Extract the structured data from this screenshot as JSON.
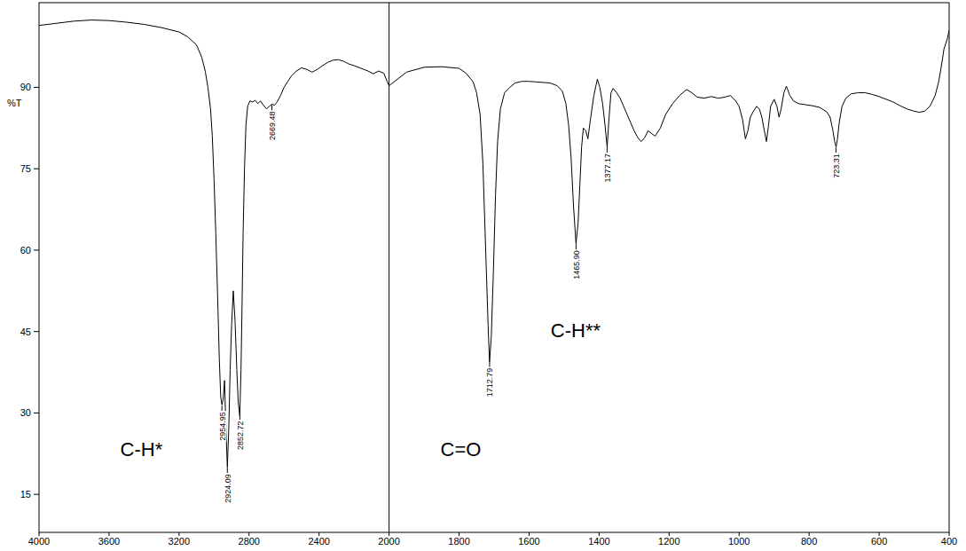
{
  "chart_data": {
    "type": "line",
    "color": "#000000",
    "ylabel": "%T",
    "grid": false,
    "xlim": [
      4000,
      400
    ],
    "xticks": [
      4000,
      3600,
      3200,
      2800,
      2400,
      2000,
      1800,
      1600,
      1400,
      1200,
      1000,
      800,
      600,
      400
    ],
    "ylim": [
      8,
      105.6
    ],
    "yticks": [
      15,
      30,
      45,
      60,
      75,
      90
    ],
    "x": [
      4000,
      3900,
      3800,
      3700,
      3600,
      3500,
      3400,
      3300,
      3200,
      3150,
      3100,
      3070,
      3050,
      3035,
      3020,
      3010,
      3000,
      2990,
      2980,
      2970,
      2962,
      2955,
      2948,
      2940,
      2932,
      2924,
      2916,
      2908,
      2900,
      2890,
      2880,
      2870,
      2862,
      2853,
      2846,
      2840,
      2834,
      2826,
      2818,
      2808,
      2795,
      2780,
      2765,
      2750,
      2735,
      2720,
      2700,
      2685,
      2669,
      2655,
      2640,
      2620,
      2600,
      2580,
      2560,
      2530,
      2500,
      2470,
      2440,
      2410,
      2380,
      2350,
      2320,
      2290,
      2260,
      2230,
      2200,
      2160,
      2120,
      2090,
      2060,
      2030,
      2010,
      2000,
      1950,
      1900,
      1850,
      1800,
      1780,
      1760,
      1750,
      1740,
      1732,
      1724,
      1717,
      1713,
      1708,
      1702,
      1696,
      1690,
      1682,
      1670,
      1655,
      1640,
      1620,
      1600,
      1580,
      1560,
      1540,
      1520,
      1505,
      1495,
      1487,
      1480,
      1473,
      1466,
      1460,
      1455,
      1450,
      1445,
      1438,
      1432,
      1425,
      1415,
      1405,
      1398,
      1390,
      1383,
      1377,
      1372,
      1366,
      1360,
      1350,
      1340,
      1330,
      1320,
      1310,
      1300,
      1290,
      1280,
      1270,
      1260,
      1250,
      1240,
      1225,
      1210,
      1190,
      1170,
      1150,
      1135,
      1120,
      1100,
      1080,
      1060,
      1040,
      1025,
      1010,
      1000,
      990,
      982,
      975,
      968,
      960,
      950,
      942,
      935,
      928,
      922,
      916,
      910,
      900,
      892,
      886,
      880,
      872,
      865,
      855,
      845,
      830,
      810,
      790,
      770,
      750,
      740,
      732,
      727,
      723,
      719,
      714,
      706,
      695,
      680,
      660,
      640,
      620,
      600,
      580,
      560,
      540,
      520,
      500,
      485,
      470,
      455,
      440,
      430,
      422,
      415,
      410,
      405,
      400
    ],
    "values": [
      101.4,
      101.8,
      102.2,
      102.4,
      102.3,
      102,
      101.6,
      101,
      100.2,
      99.3,
      97.8,
      95.5,
      92.9,
      90,
      86,
      81,
      73,
      63,
      52,
      40,
      33,
      31.5,
      32.5,
      36,
      27,
      20,
      27,
      38,
      46,
      52.5,
      47,
      38,
      32,
      29.5,
      38,
      50,
      63,
      75,
      83,
      86.5,
      87.5,
      87.3,
      87.6,
      87,
      87.5,
      86.8,
      86,
      86.5,
      86.9,
      86.7,
      87.3,
      88.5,
      90,
      91,
      92,
      93,
      93.6,
      93.3,
      92.8,
      93.3,
      94,
      94.6,
      95,
      95.1,
      94.8,
      94.3,
      94,
      93.5,
      93,
      92.5,
      93,
      92.6,
      91,
      90.3,
      92.8,
      93.7,
      93.8,
      93.5,
      92.6,
      91,
      89,
      85,
      76,
      60,
      46,
      39.4,
      44,
      56,
      70,
      80,
      86,
      89,
      90,
      90.8,
      91.1,
      91.1,
      91,
      90.9,
      90.8,
      90.3,
      89.3,
      87,
      83,
      77,
      68,
      61.2,
      65,
      72,
      79,
      82.5,
      82,
      80.5,
      84,
      88.5,
      91.5,
      90,
      87,
      83,
      79,
      84,
      89,
      89.8,
      89,
      88,
      86.5,
      85,
      83.5,
      82,
      80.8,
      80,
      80.7,
      82,
      81.5,
      81,
      82.5,
      85,
      87,
      88.5,
      89.6,
      89,
      88.2,
      88,
      88.3,
      88,
      88.2,
      88.5,
      87.5,
      86.5,
      84,
      80.5,
      82,
      84.5,
      85.5,
      86.5,
      86,
      84.5,
      82,
      80,
      83,
      86.5,
      87.8,
      86.5,
      84.5,
      86,
      89,
      90.2,
      88.5,
      87.5,
      87,
      86.8,
      86.6,
      86.3,
      85.5,
      84.5,
      82,
      80,
      79,
      80.5,
      83.5,
      86.5,
      88,
      88.8,
      89,
      89,
      88.7,
      88.3,
      87.8,
      87.3,
      86.6,
      86,
      85.6,
      85.4,
      85.6,
      86.5,
      88.5,
      91,
      94,
      97,
      98,
      99,
      100.5
    ],
    "peak_labels": [
      {
        "value": 2954.95,
        "label": "2954.95"
      },
      {
        "value": 2924.09,
        "label": "2924.09"
      },
      {
        "value": 2852.72,
        "label": "2852.72"
      },
      {
        "value": 2669.48,
        "label": "2669.48"
      },
      {
        "value": 1712.79,
        "label": "1712.79"
      },
      {
        "value": 1465.9,
        "label": "1465.90"
      },
      {
        "value": 1377.17,
        "label": "1377.17"
      },
      {
        "value": 723.31,
        "label": "723.31"
      }
    ],
    "annotations": [
      {
        "text": "C-H*",
        "x": 3415,
        "y": 22
      },
      {
        "text": "C=O",
        "x": 1795,
        "y": 22
      },
      {
        "text": "C-H**",
        "x": 1467,
        "y": 44
      }
    ]
  }
}
